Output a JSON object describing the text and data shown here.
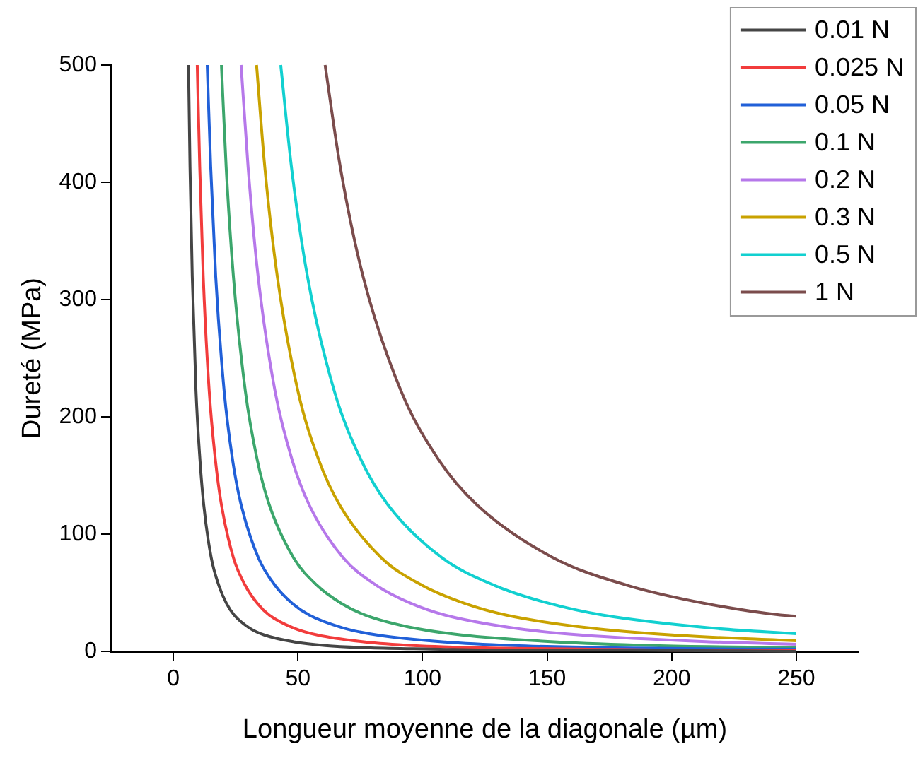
{
  "chart_data": {
    "type": "line",
    "xlabel": "Longueur moyenne de la diagonale (µm)",
    "ylabel": "Dureté (MPa)",
    "xlim": [
      -25,
      275
    ],
    "xticks": [
      0,
      50,
      100,
      150,
      200,
      250
    ],
    "ylim": [
      0,
      500
    ],
    "yticks": [
      0,
      100,
      200,
      300,
      400,
      500
    ],
    "grid": false,
    "legend": "top right",
    "marker": "none",
    "line_style": "solid",
    "series": [
      {
        "name": "0.01 N",
        "color": "#454545",
        "x": [
          6.1,
          6.7,
          7.6,
          9.1,
          10.7,
          12.2,
          15.2,
          18.3,
          21.3,
          24.4,
          30.5,
          36.5,
          48.7,
          60.9,
          79.2,
          103.5,
          134.0,
          182.7,
          250
        ],
        "values": [
          500,
          413,
          320,
          222,
          163,
          125,
          80,
          56,
          41,
          31,
          20,
          14,
          8,
          5,
          3,
          2,
          1,
          1,
          0
        ]
      },
      {
        "name": "0.025 N",
        "color": "#f23c3c",
        "x": [
          9.6,
          10.6,
          12.0,
          14.4,
          16.9,
          19.3,
          24.1,
          28.9,
          33.7,
          38.5,
          48.2,
          57.8,
          77.0,
          96.3,
          125.2,
          163.7,
          211.9,
          250
        ],
        "values": [
          500,
          413,
          320,
          222,
          163,
          125,
          80,
          56,
          41,
          31,
          20,
          14,
          8,
          5,
          3,
          2,
          1,
          1
        ]
      },
      {
        "name": "0.05 N",
        "color": "#2160d8",
        "x": [
          13.6,
          15.0,
          17.0,
          20.4,
          23.8,
          27.2,
          34.1,
          40.9,
          47.7,
          54.5,
          68.1,
          81.7,
          109.0,
          136.2,
          177.1,
          231.5,
          250
        ],
        "values": [
          500,
          413,
          320,
          222,
          163,
          125,
          80,
          56,
          41,
          31,
          20,
          14,
          8,
          5,
          3,
          2,
          2
        ]
      },
      {
        "name": "0.1 N",
        "color": "#3ca66c",
        "x": [
          19.3,
          21.2,
          24.1,
          28.9,
          33.7,
          38.5,
          48.2,
          57.8,
          67.4,
          77.0,
          96.3,
          115.6,
          154.1,
          192.6,
          250
        ],
        "values": [
          500,
          413,
          320,
          222,
          163,
          125,
          80,
          56,
          41,
          31,
          20,
          14,
          8,
          5,
          3
        ]
      },
      {
        "name": "0.2 N",
        "color": "#b678ea",
        "x": [
          27.2,
          30.0,
          34.0,
          40.8,
          47.7,
          54.5,
          68.1,
          81.7,
          95.3,
          108.9,
          136.2,
          163.4,
          217.8,
          250
        ],
        "values": [
          500,
          413,
          320,
          222,
          163,
          125,
          80,
          56,
          41,
          31,
          20,
          14,
          8,
          6
        ]
      },
      {
        "name": "0.3 N",
        "color": "#c9a200",
        "x": [
          33.4,
          36.7,
          41.7,
          50.0,
          58.4,
          66.7,
          83.4,
          100.1,
          116.8,
          133.4,
          166.8,
          200.2,
          250
        ],
        "values": [
          500,
          413,
          320,
          222,
          163,
          125,
          80,
          56,
          41,
          31,
          20,
          14,
          9
        ]
      },
      {
        "name": "0.5 N",
        "color": "#12d0d0",
        "x": [
          43.1,
          47.4,
          53.8,
          64.6,
          75.4,
          86.1,
          107.7,
          129.2,
          150.7,
          172.2,
          215.3,
          250
        ],
        "values": [
          500,
          413,
          320,
          222,
          163,
          125,
          80,
          56,
          41,
          31,
          20,
          15
        ]
      },
      {
        "name": "1 N",
        "color": "#7b4c4c",
        "x": [
          60.9,
          67.0,
          76.1,
          91.4,
          106.6,
          121.8,
          152.3,
          182.7,
          213.2,
          243.6,
          250
        ],
        "values": [
          500,
          413,
          320,
          222,
          163,
          125,
          80,
          56,
          41,
          31,
          30
        ]
      }
    ]
  }
}
